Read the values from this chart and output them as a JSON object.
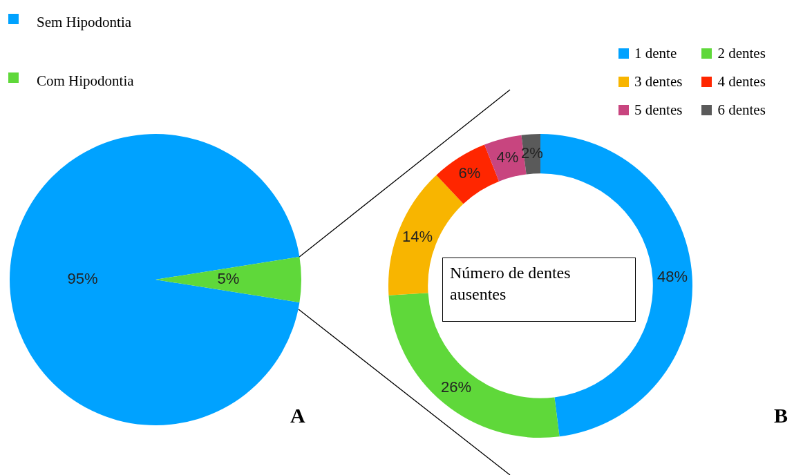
{
  "chart_data": [
    {
      "type": "pie",
      "categories": [
        "Sem Hipodontia",
        "Com Hipodontia"
      ],
      "values": [
        95,
        5
      ],
      "colors": [
        "#00a2ff",
        "#5fd83a"
      ],
      "value_labels": [
        "95%",
        "5%"
      ],
      "legend": "top left",
      "annotations": [
        "A"
      ]
    },
    {
      "type": "donut",
      "title": "Número de dentes ausentes",
      "categories": [
        "1 dente",
        "2 dentes",
        "3 dentes",
        "4 dentes",
        "5 dentes",
        "6 dentes"
      ],
      "values": [
        48,
        26,
        14,
        6,
        4,
        2
      ],
      "colors": [
        "#00a2ff",
        "#5fd83a",
        "#f8b500",
        "#ff2600",
        "#c8457f",
        "#5a5a5a"
      ],
      "value_labels": [
        "48%",
        "26%",
        "14%",
        "6%",
        "4%",
        "2%"
      ],
      "legend": "top right",
      "annotations": [
        "B"
      ]
    }
  ]
}
